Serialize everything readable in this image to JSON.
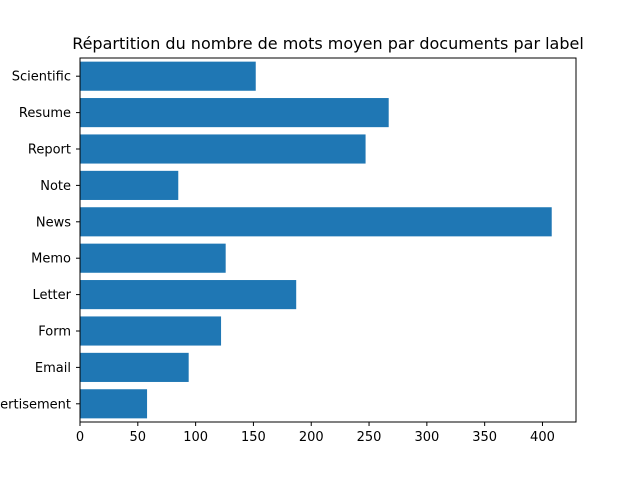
{
  "chart_data": {
    "type": "bar",
    "orientation": "horizontal",
    "title": "Répartition du nombre de mots moyen par documents par label",
    "xlabel": "",
    "ylabel": "",
    "categories": [
      "advertisement",
      "Email",
      "Form",
      "Letter",
      "Memo",
      "News",
      "Note",
      "Report",
      "Resume",
      "Scientific"
    ],
    "values": [
      58,
      94,
      122,
      187,
      126,
      408,
      85,
      247,
      267,
      152
    ],
    "xlim": [
      0,
      429
    ],
    "xticks": [
      0,
      50,
      100,
      150,
      200,
      250,
      300,
      350,
      400
    ],
    "grid": false,
    "bar_color": "#1f77b4"
  }
}
